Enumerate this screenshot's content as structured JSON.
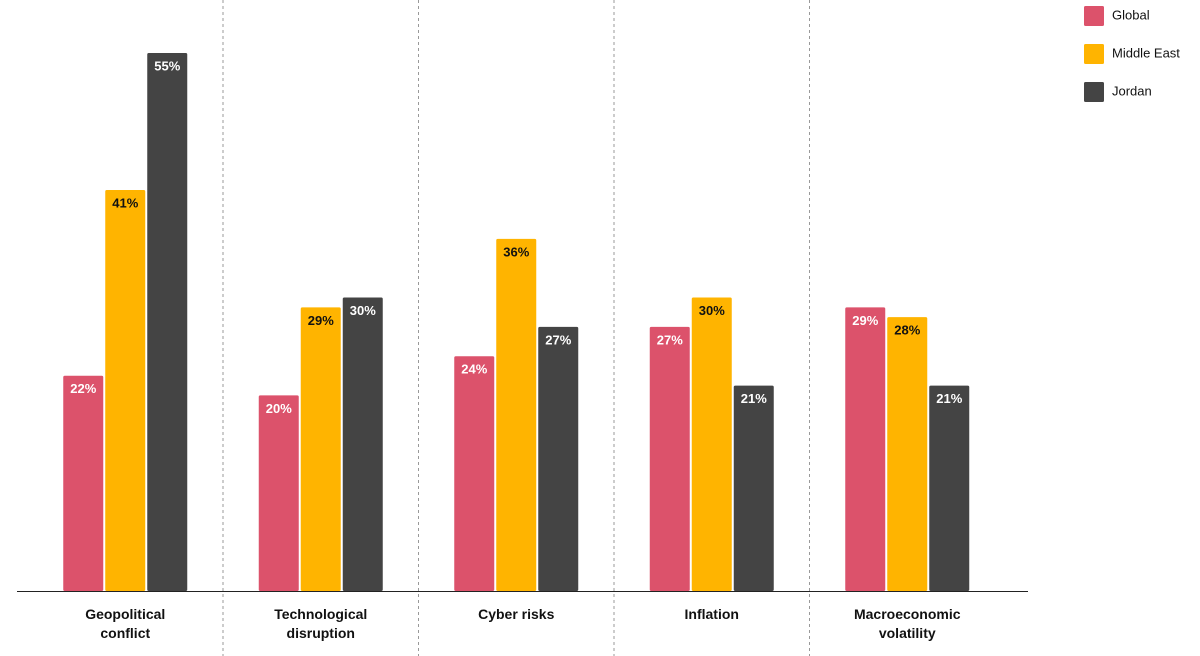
{
  "chart_data": {
    "type": "bar",
    "categories": [
      "Geopolitical conflict",
      "Technological disruption",
      "Cyber risks",
      "Inflation",
      "Macroeconomic volatility"
    ],
    "series": [
      {
        "name": "Global",
        "color": "#dc526b",
        "values": [
          22,
          20,
          24,
          27,
          29
        ],
        "value_labels": [
          "22%",
          "20%",
          "24%",
          "27%",
          "29%"
        ]
      },
      {
        "name": "Middle East",
        "color": "#ffb400",
        "values": [
          41,
          29,
          36,
          30,
          28
        ],
        "value_labels": [
          "41%",
          "29%",
          "36%",
          "30%",
          "28%"
        ]
      },
      {
        "name": "Jordan",
        "color": "#444444",
        "values": [
          55,
          30,
          27,
          21,
          21
        ],
        "value_labels": [
          "55%",
          "30%",
          "27%",
          "21%",
          "21%"
        ]
      }
    ]
  }
}
